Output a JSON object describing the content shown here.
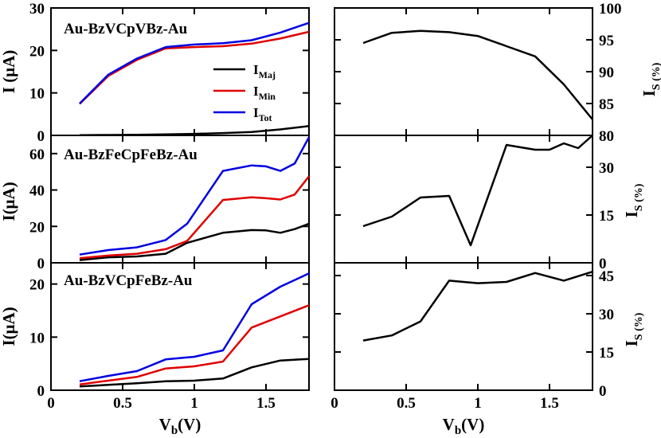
{
  "chart_data": [
    {
      "type": "line",
      "id": "left-top",
      "title": "Au-BzVCpVBz-Au",
      "ylabel": "I (μA)",
      "xlim": [
        0,
        1.8
      ],
      "ylim": [
        0,
        30
      ],
      "yticks": [
        "0",
        "10",
        "20",
        "30"
      ],
      "x": [
        0.2,
        0.4,
        0.6,
        0.8,
        1.0,
        1.2,
        1.4,
        1.6,
        1.8
      ],
      "series": [
        {
          "name": "I_Maj",
          "color": "#000000",
          "values": [
            0.05,
            0.1,
            0.15,
            0.25,
            0.35,
            0.55,
            0.8,
            1.4,
            2.2
          ]
        },
        {
          "name": "I_Min",
          "color": "#e00000",
          "values": [
            7.4,
            14.0,
            17.8,
            20.5,
            20.8,
            21.0,
            21.6,
            22.8,
            24.4
          ]
        },
        {
          "name": "I_Tot",
          "color": "#0000e0",
          "values": [
            7.5,
            14.3,
            18.1,
            20.8,
            21.4,
            21.7,
            22.4,
            24.2,
            26.5
          ]
        }
      ],
      "legend": [
        {
          "main": "I",
          "sub": "Maj",
          "color": "#000000"
        },
        {
          "main": "I",
          "sub": "Min",
          "color": "#e00000"
        },
        {
          "main": "I",
          "sub": "Tot",
          "color": "#0000e0"
        }
      ]
    },
    {
      "type": "line",
      "id": "left-mid",
      "title": "Au-BzFeCpFeBz-Au",
      "ylabel": "I(μA)",
      "xlim": [
        0,
        1.8
      ],
      "ylim": [
        0,
        70
      ],
      "yticks": [
        "0",
        "20",
        "40",
        "60"
      ],
      "x": [
        0.2,
        0.4,
        0.6,
        0.8,
        0.95,
        1.2,
        1.4,
        1.5,
        1.6,
        1.7,
        1.8
      ],
      "series": [
        {
          "name": "I_Maj",
          "color": "#000000",
          "values": [
            1.5,
            3.0,
            3.5,
            5.0,
            11.0,
            16.5,
            18.0,
            17.8,
            16.5,
            18.5,
            21.5
          ]
        },
        {
          "name": "I_Min",
          "color": "#e00000",
          "values": [
            2.5,
            4.0,
            5.0,
            7.5,
            12.0,
            34.5,
            36.0,
            35.5,
            34.8,
            37.5,
            47.5
          ]
        },
        {
          "name": "I_Tot",
          "color": "#0000e0",
          "values": [
            4.5,
            7.0,
            8.5,
            12.5,
            21.5,
            50.5,
            53.5,
            53.0,
            50.5,
            54.5,
            69.0
          ]
        }
      ]
    },
    {
      "type": "line",
      "id": "left-bot",
      "title": "Au-BzVCpFeBz-Au",
      "ylabel": "I(μA)",
      "xlabel": "V_b(V)",
      "xlim": [
        0,
        1.8
      ],
      "ylim": [
        0,
        24
      ],
      "yticks": [
        "0",
        "10",
        "20"
      ],
      "xticks": [
        "0",
        "0.5",
        "1",
        "1.5"
      ],
      "x": [
        0.2,
        0.4,
        0.6,
        0.8,
        1.0,
        1.2,
        1.4,
        1.6,
        1.8
      ],
      "series": [
        {
          "name": "I_Maj",
          "color": "#000000",
          "values": [
            0.7,
            1.0,
            1.3,
            1.7,
            1.8,
            2.2,
            4.3,
            5.6,
            5.9
          ]
        },
        {
          "name": "I_Min",
          "color": "#e00000",
          "values": [
            1.1,
            1.8,
            2.5,
            4.1,
            4.5,
            5.4,
            11.8,
            13.9,
            16.0
          ]
        },
        {
          "name": "I_Tot",
          "color": "#0000e0",
          "values": [
            1.7,
            2.7,
            3.6,
            5.8,
            6.3,
            7.5,
            16.2,
            19.5,
            22.0
          ]
        }
      ]
    },
    {
      "type": "line",
      "id": "right-top",
      "ylabel_main": "I",
      "ylabel_sub": "S (%)",
      "xlim": [
        0,
        1.8
      ],
      "ylim": [
        80,
        100
      ],
      "yticks": [
        "80",
        "85",
        "90",
        "95",
        "100"
      ],
      "x": [
        0.2,
        0.4,
        0.6,
        0.8,
        1.0,
        1.2,
        1.4,
        1.6,
        1.8
      ],
      "series": [
        {
          "name": "I_S",
          "color": "#000000",
          "values": [
            94.5,
            96.1,
            96.4,
            96.2,
            95.6,
            94.0,
            92.4,
            88.0,
            82.5
          ]
        }
      ]
    },
    {
      "type": "line",
      "id": "right-mid",
      "ylabel_main": "I",
      "ylabel_sub": "S (%)",
      "xlim": [
        0,
        1.8
      ],
      "ylim": [
        0,
        40
      ],
      "yticks": [
        "0",
        "15",
        "30"
      ],
      "x": [
        0.2,
        0.4,
        0.6,
        0.8,
        0.95,
        1.2,
        1.4,
        1.5,
        1.6,
        1.7,
        1.8
      ],
      "series": [
        {
          "name": "I_S",
          "color": "#000000",
          "values": [
            11.5,
            14.5,
            20.5,
            21.0,
            5.5,
            37.0,
            35.5,
            35.5,
            37.5,
            36.0,
            40.0
          ]
        }
      ]
    },
    {
      "type": "line",
      "id": "right-bot",
      "ylabel_main": "I",
      "ylabel_sub": "S (%)",
      "xlabel": "V_b(V)",
      "xlim": [
        0,
        1.8
      ],
      "ylim": [
        0,
        50
      ],
      "yticks": [
        "0",
        "15",
        "30",
        "45"
      ],
      "xticks": [
        "0",
        "0.5",
        "1",
        "1.5"
      ],
      "x": [
        0.2,
        0.4,
        0.6,
        0.8,
        1.0,
        1.2,
        1.4,
        1.6,
        1.8
      ],
      "series": [
        {
          "name": "I_S",
          "color": "#000000",
          "values": [
            19.5,
            21.5,
            27.0,
            43.0,
            42.0,
            42.5,
            46.0,
            43.0,
            46.5
          ]
        }
      ]
    }
  ],
  "xlabel_main": "V",
  "xlabel_sub": "b",
  "xlabel_unit": "(V)"
}
